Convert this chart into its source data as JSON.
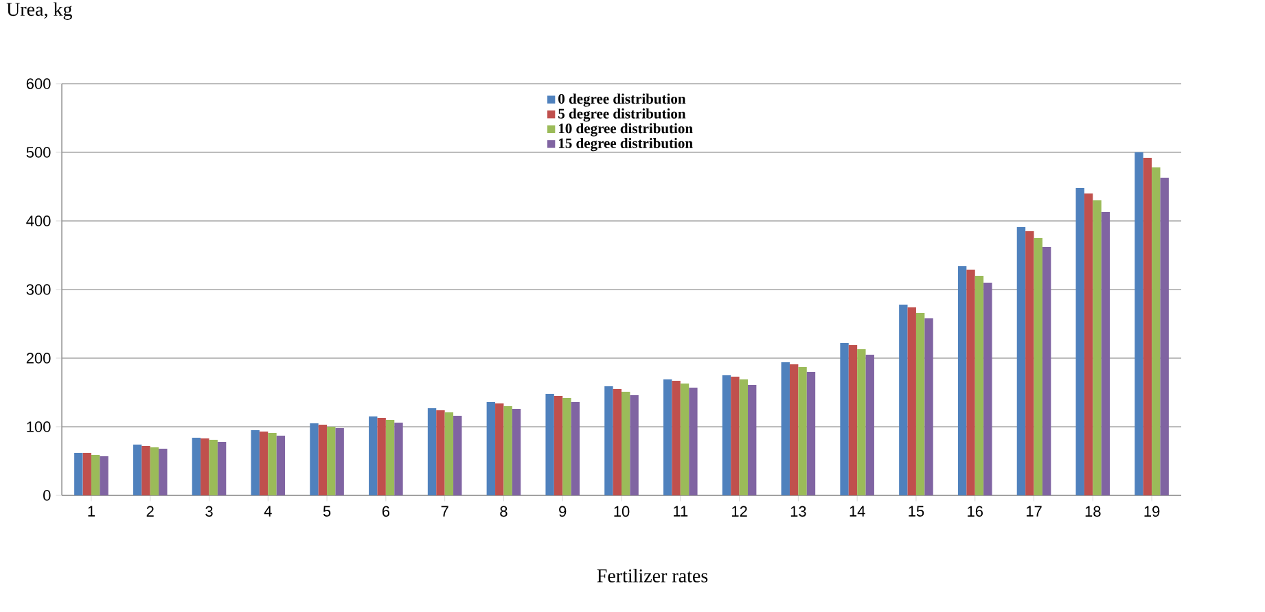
{
  "chart_data": {
    "type": "bar",
    "ylabel": "Urea, kg",
    "xlabel": "Fertilizer rates",
    "categories": [
      "1",
      "2",
      "3",
      "4",
      "5",
      "6",
      "7",
      "8",
      "9",
      "10",
      "11",
      "12",
      "13",
      "14",
      "15",
      "16",
      "17",
      "18",
      "19"
    ],
    "series": [
      {
        "name": "0 degree distribution",
        "color": "#4f81bd",
        "values": [
          62,
          74,
          84,
          95,
          105,
          115,
          127,
          136,
          148,
          159,
          169,
          175,
          194,
          222,
          278,
          334,
          391,
          448,
          500
        ]
      },
      {
        "name": "5 degree distribution",
        "color": "#c0504d",
        "values": [
          62,
          72,
          83,
          93,
          103,
          113,
          124,
          134,
          145,
          155,
          167,
          173,
          191,
          219,
          274,
          329,
          385,
          440,
          492
        ]
      },
      {
        "name": "10 degree distribution",
        "color": "#9bbb59",
        "values": [
          59,
          70,
          81,
          91,
          100,
          110,
          121,
          130,
          142,
          151,
          163,
          169,
          187,
          213,
          266,
          320,
          375,
          430,
          478
        ]
      },
      {
        "name": "15 degree distribution",
        "color": "#8064a2",
        "values": [
          57,
          68,
          78,
          87,
          98,
          106,
          116,
          126,
          136,
          146,
          157,
          161,
          180,
          205,
          258,
          310,
          362,
          413,
          463
        ]
      }
    ],
    "ylim": [
      0,
      600
    ],
    "yticks": [
      0,
      100,
      200,
      300,
      400,
      500,
      600
    ],
    "grid": "y",
    "legend": "top"
  }
}
